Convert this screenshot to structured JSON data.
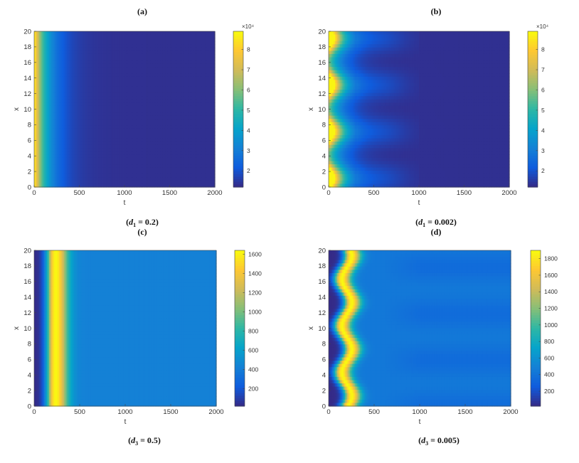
{
  "colors": {
    "parula": [
      "#352a87",
      "#0f5cdd",
      "#1481d6",
      "#06a4ca",
      "#2eb7a4",
      "#87bf77",
      "#d1bb59",
      "#fec832",
      "#f9fb0e"
    ]
  },
  "chart_data": [
    {
      "type": "heatmap",
      "panel_label": "(a)",
      "caption": "(d1 = 0.2)",
      "caption_parts": {
        "var": "d",
        "sub": "1",
        "rest": " = 0.2)"
      },
      "xlabel": "t",
      "ylabel": "x",
      "xlim": [
        0,
        2000
      ],
      "ylim": [
        0,
        20
      ],
      "xticks": [
        "0",
        "500",
        "1000",
        "1500",
        "2000"
      ],
      "yticks": [
        "0",
        "2",
        "4",
        "6",
        "8",
        "10",
        "12",
        "14",
        "16",
        "18",
        "20"
      ],
      "colorbar": {
        "ticks": [
          "2",
          "3",
          "4",
          "5",
          "6",
          "7",
          "8"
        ],
        "exponent": "×10⁴",
        "range": [
          1.2,
          8.9
        ]
      },
      "pattern": "decay",
      "oscillation": 0,
      "description_values": {
        "max_at_t0": 88000,
        "background": 12000
      }
    },
    {
      "type": "heatmap",
      "panel_label": "(b)",
      "caption": "(d1 = 0.002)",
      "caption_parts": {
        "var": "d",
        "sub": "1",
        "rest": " = 0.002)"
      },
      "xlabel": "t",
      "ylabel": "x",
      "xlim": [
        0,
        2000
      ],
      "ylim": [
        0,
        20
      ],
      "xticks": [
        "0",
        "500",
        "1000",
        "1500",
        "2000"
      ],
      "yticks": [
        "0",
        "2",
        "4",
        "6",
        "8",
        "10",
        "12",
        "14",
        "16",
        "18",
        "20"
      ],
      "colorbar": {
        "ticks": [
          "2",
          "3",
          "4",
          "5",
          "6",
          "7",
          "8"
        ],
        "exponent": "×10⁴",
        "range": [
          1.2,
          8.9
        ]
      },
      "pattern": "decay",
      "oscillation": 1,
      "description_values": {
        "max_at_t0": 88000,
        "background": 12000
      }
    },
    {
      "type": "heatmap",
      "panel_label": "(c)",
      "caption": "(d3 = 0.5)",
      "caption_parts": {
        "var": "d",
        "sub": "3",
        "rest": " = 0.5)"
      },
      "xlabel": "t",
      "ylabel": "x",
      "xlim": [
        0,
        2000
      ],
      "ylim": [
        0,
        20
      ],
      "xticks": [
        "0",
        "500",
        "1000",
        "1500",
        "2000"
      ],
      "yticks": [
        "0",
        "2",
        "4",
        "6",
        "8",
        "10",
        "12",
        "14",
        "16",
        "18",
        "20"
      ],
      "colorbar": {
        "ticks": [
          "200",
          "400",
          "600",
          "800",
          "1000",
          "1200",
          "1400",
          "1600"
        ],
        "exponent": "",
        "range": [
          20,
          1640
        ]
      },
      "pattern": "pulse",
      "oscillation": 0,
      "description_values": {
        "peak_t": 230,
        "peak_value": 1620,
        "background": 420
      }
    },
    {
      "type": "heatmap",
      "panel_label": "(d)",
      "caption": "(d3 = 0.005)",
      "caption_parts": {
        "var": "d",
        "sub": "3",
        "rest": " = 0.005)"
      },
      "xlabel": "t",
      "ylabel": "x",
      "xlim": [
        0,
        2000
      ],
      "ylim": [
        0,
        20
      ],
      "xticks": [
        "0",
        "500",
        "1000",
        "1500",
        "2000"
      ],
      "yticks": [
        "0",
        "2",
        "4",
        "6",
        "8",
        "10",
        "12",
        "14",
        "16",
        "18",
        "20"
      ],
      "colorbar": {
        "ticks": [
          "200",
          "400",
          "600",
          "800",
          "1000",
          "1200",
          "1400",
          "1600",
          "1800"
        ],
        "exponent": "",
        "range": [
          20,
          1900
        ]
      },
      "pattern": "pulse",
      "oscillation": 1,
      "description_values": {
        "peak_t": 200,
        "peak_value": 1880,
        "background": 420
      }
    }
  ]
}
